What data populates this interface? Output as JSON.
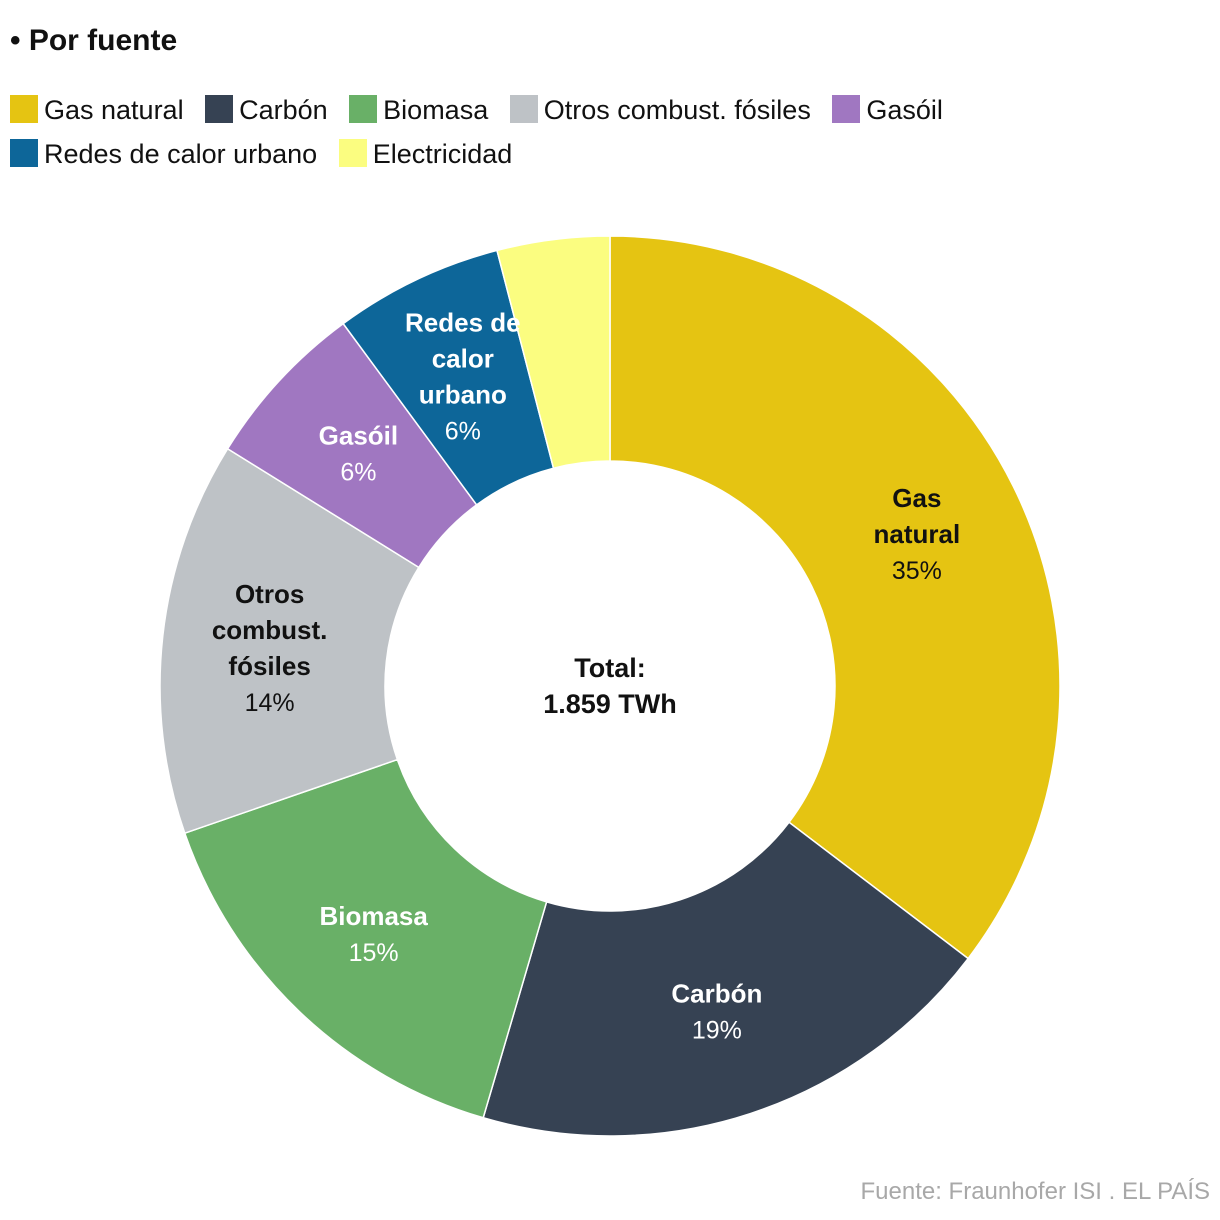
{
  "title": "• Por fuente",
  "legend": [
    {
      "label": "Gas natural",
      "color": "#e5c412"
    },
    {
      "label": "Carbón",
      "color": "#364253"
    },
    {
      "label": "Biomasa",
      "color": "#69b067"
    },
    {
      "label": "Otros combust. fósiles",
      "color": "#bec2c6"
    },
    {
      "label": "Gasóil",
      "color": "#a077c1"
    },
    {
      "label": "Redes de calor urbano",
      "color": "#0d6699"
    },
    {
      "label": "Electricidad",
      "color": "#fbfd80"
    }
  ],
  "center": {
    "line1": "Total:",
    "line2": "1.859 TWh"
  },
  "source": "Fuente: Fraunhofer ISI . EL PAÍS",
  "chart_data": {
    "type": "pie",
    "variant": "donut",
    "total_label": "Total: 1.859 TWh",
    "slices": [
      {
        "name": "Gas natural",
        "label_lines": [
          "Gas",
          "natural"
        ],
        "value": 35,
        "pct_label": "35%",
        "color": "#e5c412",
        "text_color": "#111111"
      },
      {
        "name": "Carbón",
        "label_lines": [
          "Carbón"
        ],
        "value": 19,
        "pct_label": "19%",
        "color": "#364253",
        "text_color": "#ffffff"
      },
      {
        "name": "Biomasa",
        "label_lines": [
          "Biomasa"
        ],
        "value": 15,
        "pct_label": "15%",
        "color": "#69b067",
        "text_color": "#ffffff"
      },
      {
        "name": "Otros combust. fósiles",
        "label_lines": [
          "Otros",
          "combust.",
          "fósiles"
        ],
        "value": 14,
        "pct_label": "14%",
        "color": "#bec2c6",
        "text_color": "#111111"
      },
      {
        "name": "Gasóil",
        "label_lines": [
          "Gasóil"
        ],
        "value": 6,
        "pct_label": "6%",
        "color": "#a077c1",
        "text_color": "#ffffff"
      },
      {
        "name": "Redes de calor urbano",
        "label_lines": [
          "Redes de",
          "calor",
          "urbano"
        ],
        "value": 6,
        "pct_label": "6%",
        "color": "#0d6699",
        "text_color": "#ffffff"
      },
      {
        "name": "Electricidad",
        "label_lines": [],
        "value": 4,
        "pct_label": "",
        "color": "#fbfd80",
        "text_color": "#111111"
      }
    ]
  }
}
